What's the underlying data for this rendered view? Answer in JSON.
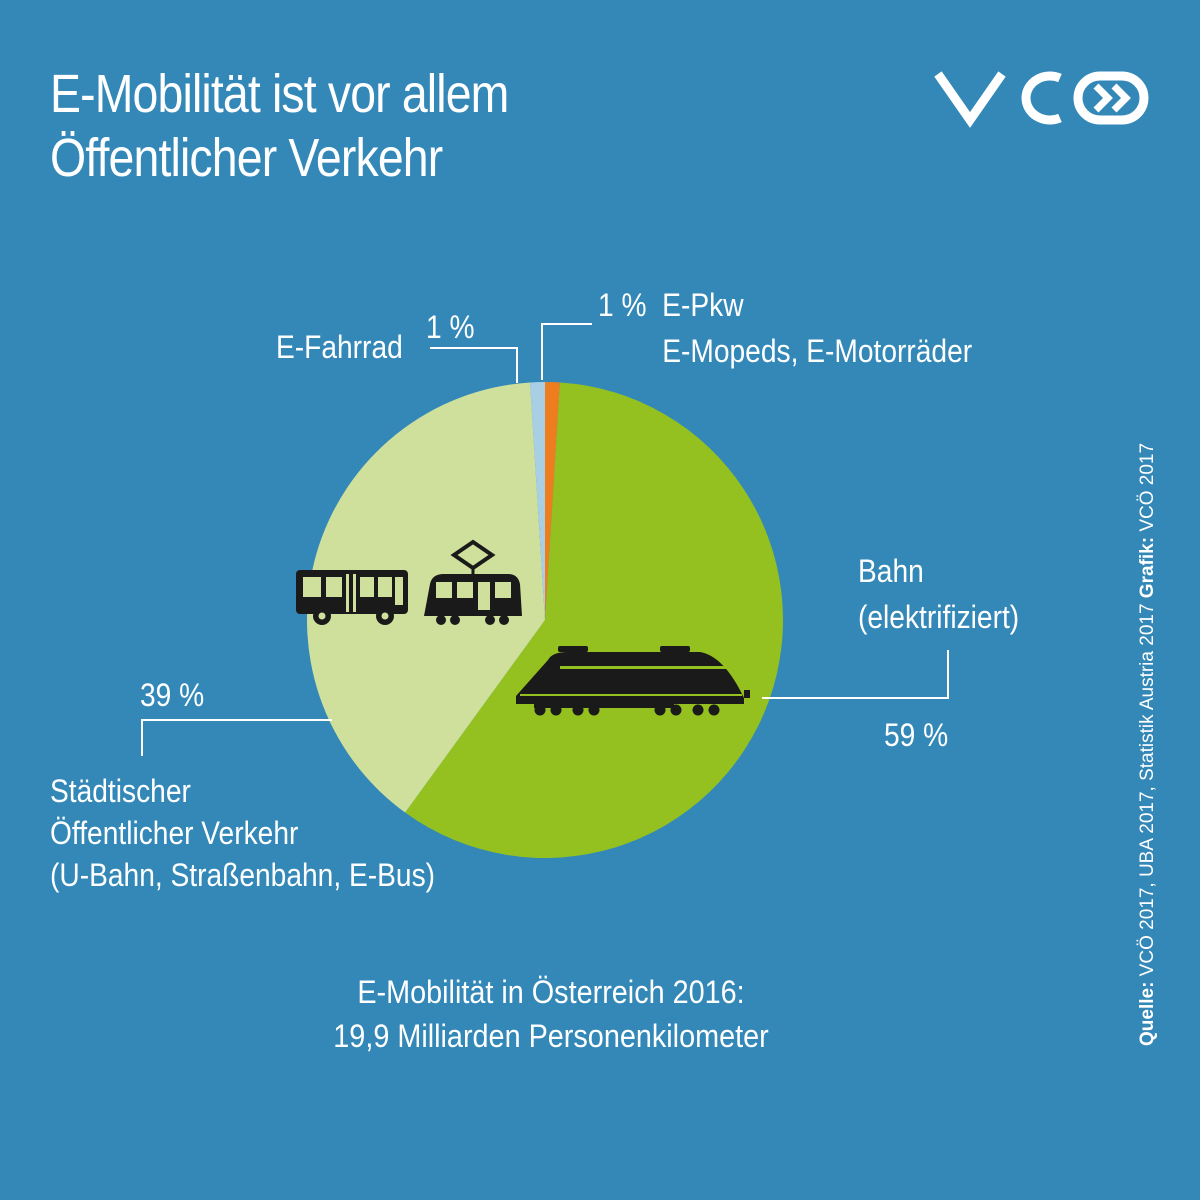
{
  "header": {
    "title_line1": "E-Mobilität ist vor allem",
    "title_line2": "Öffentlicher Verkehr"
  },
  "logo": {
    "text": "VCÖ",
    "icon": "vco-logo"
  },
  "chart_data": {
    "type": "pie",
    "title": "E-Mobilität ist vor allem Öffentlicher Verkehr",
    "slices": [
      {
        "label": "E-Pkw E-Mopeds, E-Motorräder",
        "label_lines": [
          "E-Pkw",
          "E-Mopeds, E-Motorräder"
        ],
        "value": 1,
        "value_label": "1 %",
        "color": "#ee7d20"
      },
      {
        "label": "Bahn (elektrifiziert)",
        "label_lines": [
          "Bahn",
          "(elektrifiziert)"
        ],
        "value": 59,
        "value_label": "59 %",
        "color": "#94c11f"
      },
      {
        "label": "Städtischer Öffentlicher Verkehr (U-Bahn, Straßenbahn, E-Bus)",
        "label_lines": [
          "Städtischer",
          "Öffentlicher Verkehr",
          "(U-Bahn, Straßenbahn, E-Bus)"
        ],
        "value": 39,
        "value_label": "39 %",
        "color": "#cfe09c"
      },
      {
        "label": "E-Fahrrad",
        "label_lines": [
          "E-Fahrrad"
        ],
        "value": 1,
        "value_label": "1 %",
        "color": "#a9cfe4"
      }
    ],
    "icons": [
      "bus-icon",
      "tram-icon",
      "train-icon"
    ]
  },
  "footer": {
    "line1": "E-Mobilität in Österreich 2016:",
    "line2": "19,9 Milliarden Personenkilometer"
  },
  "source": {
    "quelle_label": "Quelle:",
    "quelle_text": " VCÖ 2017, UBA 2017, Statistik Austria 2017 ",
    "grafik_label": "Grafik:",
    "grafik_text": " VCÖ 2017"
  }
}
